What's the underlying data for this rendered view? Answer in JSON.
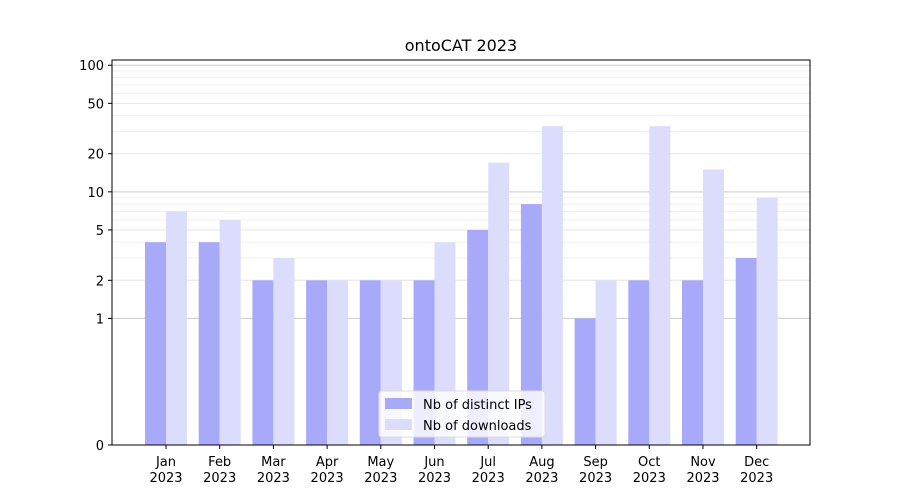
{
  "chart_data": {
    "type": "bar",
    "title": "ontoCAT 2023",
    "xlabel": "",
    "ylabel": "",
    "yscale": "symlog",
    "ylim": [
      0,
      110
    ],
    "ytick_values": [
      0,
      1,
      2,
      5,
      10,
      20,
      50,
      100
    ],
    "ytick_labels": [
      "0",
      "1",
      "2",
      "5",
      "10",
      "20",
      "50",
      "100"
    ],
    "categories": [
      "Jan\n2023",
      "Feb\n2023",
      "Mar\n2023",
      "Apr\n2023",
      "May\n2023",
      "Jun\n2023",
      "Jul\n2023",
      "Aug\n2023",
      "Sep\n2023",
      "Oct\n2023",
      "Nov\n2023",
      "Dec\n2023"
    ],
    "series": [
      {
        "name": "Nb of distinct IPs",
        "color": "#a9a9fa",
        "values": [
          4,
          4,
          2,
          2,
          2,
          2,
          5,
          8,
          1,
          2,
          2,
          3
        ]
      },
      {
        "name": "Nb of downloads",
        "color": "#dcdcfd",
        "values": [
          7,
          6,
          3,
          2,
          2,
          4,
          17,
          33,
          2,
          33,
          15,
          9
        ]
      }
    ],
    "legend_position": "bottom-center",
    "grid": "y",
    "colors": {
      "axis": "#000000",
      "major_grid": "#cccccc",
      "minor_grid": "#eeeeee"
    }
  }
}
